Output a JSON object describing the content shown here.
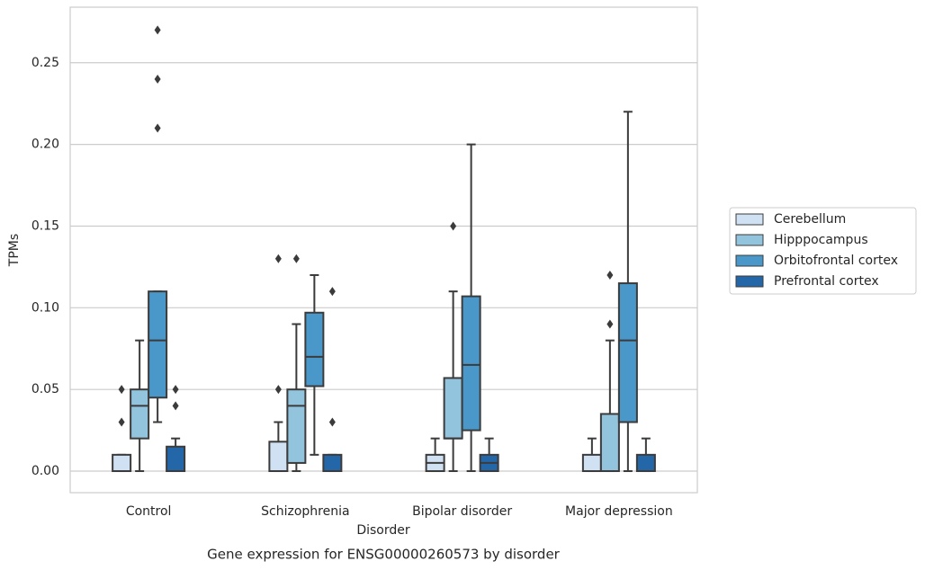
{
  "chart_data": {
    "type": "box",
    "title": "Gene expression for ENSG00000260573 by disorder",
    "x_label": "Disorder",
    "y_label": "TPMs",
    "categories": [
      "Control",
      "Schizophrenia",
      "Bipolar disorder",
      "Major depression"
    ],
    "ylim": [
      -0.0132,
      0.284
    ],
    "yticks": [
      {
        "value": 0,
        "label": "0.00"
      },
      0.05,
      {
        "value": 0.1,
        "label": "0.10"
      },
      0.15,
      {
        "value": 0.2,
        "label": "0.20"
      },
      0.25
    ],
    "grid": true,
    "legend": "right",
    "series": [
      {
        "name": "Cerebellum",
        "color": "#cfe1f2",
        "whislo": [
          0,
          0,
          0,
          0
        ],
        "q1": [
          0,
          0,
          0,
          0
        ],
        "median": [
          0,
          0,
          0.005,
          0
        ],
        "q3": [
          0.01,
          0.018,
          0.01,
          0.01
        ],
        "whishi": [
          0.01,
          0.03,
          0.02,
          0.02
        ],
        "outliers": [
          [
            0.05,
            0.03
          ],
          [
            0.13,
            0.05
          ],
          [],
          []
        ]
      },
      {
        "name": "Hipppocampus",
        "color": "#93c4de",
        "whislo": [
          0,
          0,
          0,
          0
        ],
        "q1": [
          0.02,
          0.005,
          0.02,
          0
        ],
        "median": [
          0.04,
          0.04,
          0.02,
          0
        ],
        "q3": [
          0.05,
          0.05,
          0.057,
          0.035
        ],
        "whishi": [
          0.08,
          0.09,
          0.11,
          0.08
        ],
        "outliers": [
          [],
          [
            0.13
          ],
          [
            0.15
          ],
          [
            0.12,
            0.09
          ]
        ]
      },
      {
        "name": "Orbitofrontal cortex",
        "color": "#4a98c9",
        "whislo": [
          0.03,
          0.01,
          0,
          0
        ],
        "q1": [
          0.045,
          0.052,
          0.025,
          0.03
        ],
        "median": [
          0.08,
          0.07,
          0.065,
          0.08
        ],
        "q3": [
          0.11,
          0.097,
          0.107,
          0.115
        ],
        "whishi": [
          0.11,
          0.12,
          0.2,
          0.22
        ],
        "outliers": [
          [
            0.21,
            0.24,
            0.27
          ],
          [],
          [],
          []
        ]
      },
      {
        "name": "Prefrontal cortex",
        "color": "#2467a8",
        "whislo": [
          0,
          0,
          0,
          0
        ],
        "q1": [
          0,
          0,
          0,
          0
        ],
        "median": [
          0,
          0,
          0.005,
          0
        ],
        "q3": [
          0.015,
          0.01,
          0.01,
          0.01
        ],
        "whishi": [
          0.02,
          0.01,
          0.02,
          0.02
        ],
        "outliers": [
          [
            0.05,
            0.04
          ],
          [
            0.11,
            0.03
          ],
          [],
          []
        ]
      }
    ]
  }
}
